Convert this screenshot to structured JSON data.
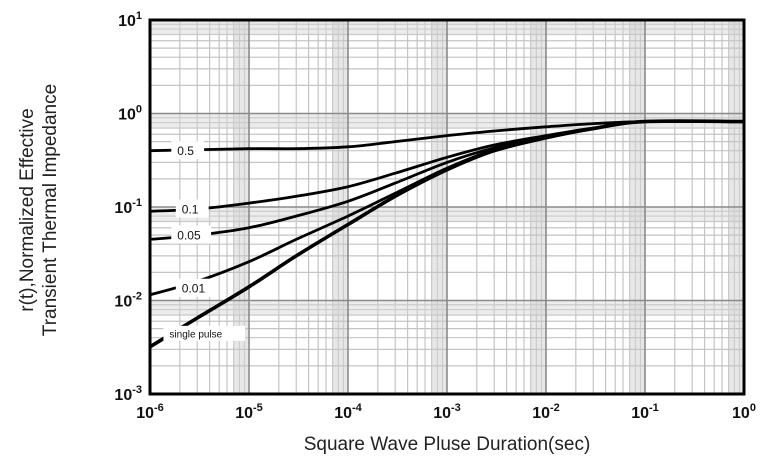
{
  "chart_data": {
    "type": "line",
    "xscale": "log",
    "yscale": "log",
    "xlim": [
      1e-06,
      1
    ],
    "ylim": [
      0.001,
      10
    ],
    "grid": true,
    "xlabel": "Square Wave Pluse Duration(sec)",
    "ylabel": [
      "r(t),Normalized Effective",
      "Transient Thermal Impedance"
    ],
    "x_ticks": [
      {
        "value": 1e-06,
        "base": "10",
        "exp": "-6"
      },
      {
        "value": 1e-05,
        "base": "10",
        "exp": "-5"
      },
      {
        "value": 0.0001,
        "base": "10",
        "exp": "-4"
      },
      {
        "value": 0.001,
        "base": "10",
        "exp": "-3"
      },
      {
        "value": 0.01,
        "base": "10",
        "exp": "-2"
      },
      {
        "value": 0.1,
        "base": "10",
        "exp": "-1"
      },
      {
        "value": 1,
        "base": "10",
        "exp": "0"
      }
    ],
    "y_ticks": [
      {
        "value": 10,
        "base": "10",
        "exp": "1"
      },
      {
        "value": 1,
        "base": "10",
        "exp": "0"
      },
      {
        "value": 0.1,
        "base": "10",
        "exp": "-1"
      },
      {
        "value": 0.01,
        "base": "10",
        "exp": "-2"
      },
      {
        "value": 0.001,
        "base": "10",
        "exp": "-3"
      }
    ],
    "series": [
      {
        "name": "0.5",
        "points": [
          [
            1e-06,
            0.4
          ],
          [
            1e-05,
            0.42
          ],
          [
            3e-05,
            0.42
          ],
          [
            0.0001,
            0.44
          ],
          [
            0.0003,
            0.5
          ],
          [
            0.001,
            0.58
          ],
          [
            0.003,
            0.65
          ],
          [
            0.01,
            0.72
          ],
          [
            0.03,
            0.78
          ],
          [
            0.1,
            0.82
          ],
          [
            0.3,
            0.82
          ],
          [
            1,
            0.82
          ]
        ]
      },
      {
        "name": "0.1",
        "points": [
          [
            1e-06,
            0.09
          ],
          [
            3e-06,
            0.095
          ],
          [
            1e-05,
            0.11
          ],
          [
            3e-05,
            0.13
          ],
          [
            0.0001,
            0.165
          ],
          [
            0.0003,
            0.23
          ],
          [
            0.001,
            0.34
          ],
          [
            0.003,
            0.46
          ],
          [
            0.01,
            0.58
          ],
          [
            0.03,
            0.7
          ],
          [
            0.1,
            0.82
          ],
          [
            1,
            0.82
          ]
        ]
      },
      {
        "name": "0.05",
        "points": [
          [
            1e-06,
            0.045
          ],
          [
            3e-06,
            0.05
          ],
          [
            1e-05,
            0.06
          ],
          [
            3e-05,
            0.08
          ],
          [
            0.0001,
            0.115
          ],
          [
            0.0003,
            0.18
          ],
          [
            0.001,
            0.3
          ],
          [
            0.003,
            0.43
          ],
          [
            0.01,
            0.56
          ],
          [
            0.03,
            0.69
          ],
          [
            0.1,
            0.82
          ],
          [
            1,
            0.82
          ]
        ]
      },
      {
        "name": "0.01",
        "points": [
          [
            1e-06,
            0.0115
          ],
          [
            3e-06,
            0.016
          ],
          [
            1e-05,
            0.026
          ],
          [
            3e-05,
            0.045
          ],
          [
            0.0001,
            0.08
          ],
          [
            0.0003,
            0.14
          ],
          [
            0.001,
            0.26
          ],
          [
            0.003,
            0.41
          ],
          [
            0.01,
            0.55
          ],
          [
            0.03,
            0.69
          ],
          [
            0.1,
            0.82
          ],
          [
            1,
            0.82
          ]
        ]
      },
      {
        "name": "single pulse",
        "points": [
          [
            1e-06,
            0.0032
          ],
          [
            3e-06,
            0.0065
          ],
          [
            1e-05,
            0.014
          ],
          [
            3e-05,
            0.03
          ],
          [
            0.0001,
            0.065
          ],
          [
            0.0003,
            0.13
          ],
          [
            0.001,
            0.25
          ],
          [
            0.003,
            0.4
          ],
          [
            0.01,
            0.55
          ],
          [
            0.03,
            0.69
          ],
          [
            0.1,
            0.82
          ],
          [
            1,
            0.82
          ]
        ]
      }
    ],
    "annotations": [
      "0.5",
      "0.1",
      "0.05",
      "0.01",
      "single pulse"
    ]
  }
}
